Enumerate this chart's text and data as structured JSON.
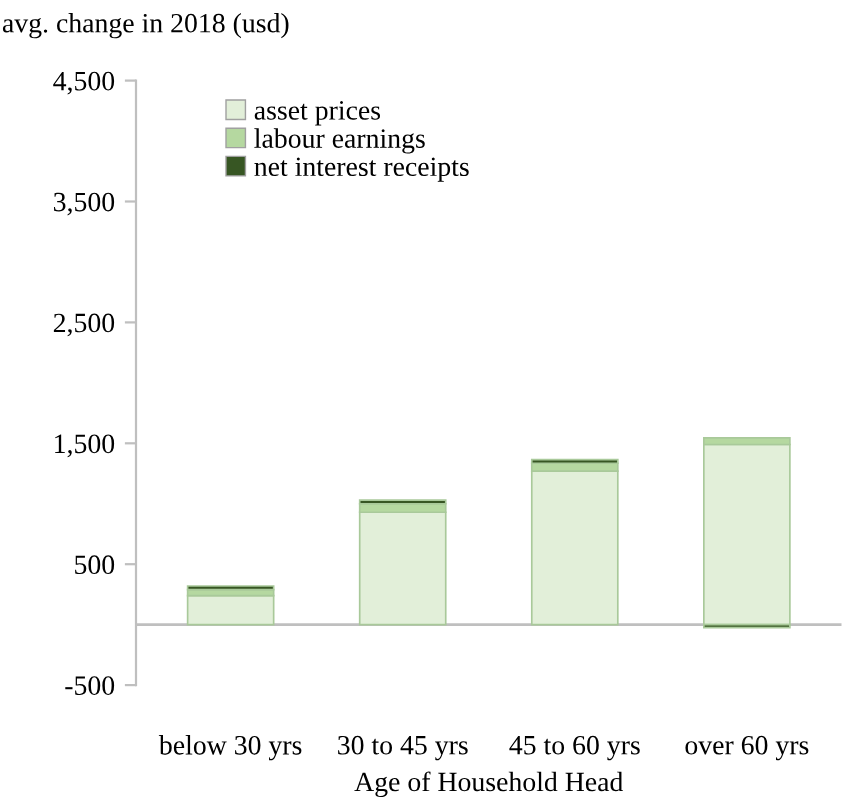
{
  "chart_data": {
    "type": "bar",
    "stacked": true,
    "ylabel": "avg. change in 2018 (usd)",
    "xlabel": "Age of Household Head",
    "categories": [
      "below 30 yrs",
      "30 to 45 yrs",
      "45 to 60 yrs",
      "over 60 yrs"
    ],
    "series": [
      {
        "name": "asset prices",
        "color": "#e2efd9",
        "values": [
          240,
          930,
          1270,
          1490
        ]
      },
      {
        "name": "labour earnings",
        "color": "#b5d8a0",
        "values": [
          50,
          70,
          65,
          55
        ]
      },
      {
        "name": "net interest receipts",
        "color": "#375623",
        "values": [
          30,
          30,
          30,
          -25
        ]
      }
    ],
    "ylim": [
      -500,
      4500
    ],
    "yticks": [
      {
        "value": -500,
        "label": "-500"
      },
      {
        "value": 500,
        "label": "500"
      },
      {
        "value": 1500,
        "label": "1,500"
      },
      {
        "value": 2500,
        "label": "2,500"
      },
      {
        "value": 3500,
        "label": "3,500"
      },
      {
        "value": 4500,
        "label": "4,500"
      }
    ],
    "grid": false,
    "legend": "top left"
  }
}
